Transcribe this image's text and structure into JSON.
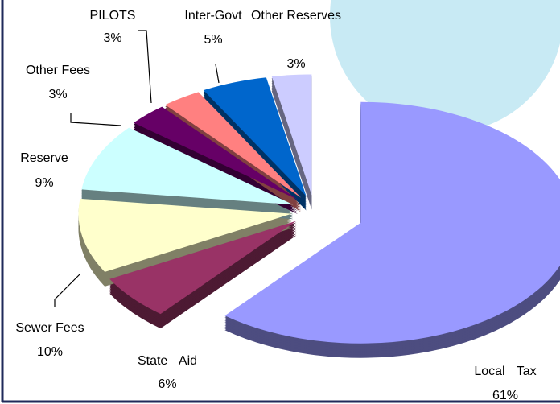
{
  "chart_data": {
    "type": "pie",
    "categories": [
      "Local Tax",
      "State Aid",
      "Sewer Fees",
      "Reserve",
      "Other Fees",
      "PILOTS",
      "Inter-Govt",
      "Other Reserves"
    ],
    "values": [
      61,
      6,
      10,
      9,
      3,
      3,
      5,
      3
    ],
    "value_labels": [
      "61%",
      "6%",
      "10%",
      "9%",
      "3%",
      "3%",
      "5%",
      "3%"
    ],
    "colors": [
      "#9999ff",
      "#993366",
      "#ffffcc",
      "#ccffff",
      "#660066",
      "#ff8080",
      "#0066cc",
      "#ccccff"
    ]
  }
}
